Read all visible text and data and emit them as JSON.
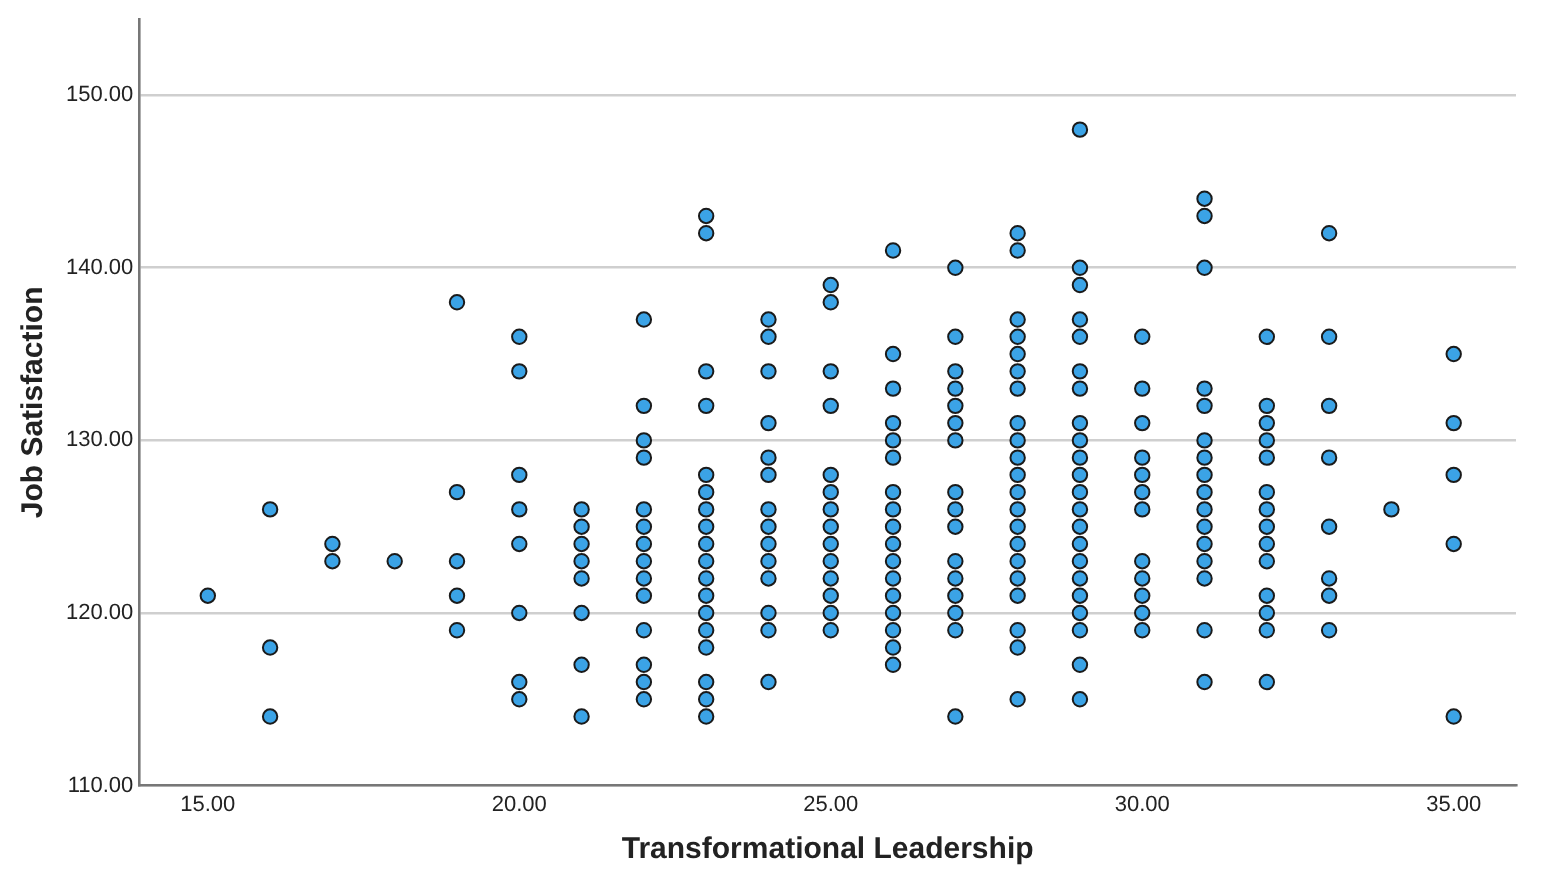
{
  "chart_data": {
    "type": "scatter",
    "xlabel": "Transformational Leadership",
    "ylabel": "Job Satisfaction",
    "x": [
      15,
      16,
      16,
      16,
      17,
      17,
      18,
      19,
      19,
      19,
      19,
      19,
      20,
      20,
      20,
      20,
      20,
      20,
      20,
      20,
      21,
      21,
      21,
      21,
      21,
      21,
      21,
      21,
      22,
      22,
      22,
      22,
      22,
      22,
      22,
      22,
      22,
      22,
      22,
      22,
      22,
      22,
      23,
      23,
      23,
      23,
      23,
      23,
      23,
      23,
      23,
      23,
      23,
      23,
      23,
      23,
      23,
      23,
      23,
      23,
      24,
      24,
      24,
      24,
      24,
      24,
      24,
      24,
      24,
      24,
      24,
      24,
      24,
      24,
      25,
      25,
      25,
      25,
      25,
      25,
      25,
      25,
      25,
      25,
      25,
      25,
      25,
      25,
      26,
      26,
      26,
      26,
      26,
      26,
      26,
      26,
      26,
      26,
      26,
      26,
      26,
      26,
      26,
      26,
      26,
      27,
      27,
      27,
      27,
      27,
      27,
      27,
      27,
      27,
      27,
      27,
      27,
      27,
      27,
      27,
      27,
      28,
      28,
      28,
      28,
      28,
      28,
      28,
      28,
      28,
      28,
      28,
      28,
      28,
      28,
      28,
      28,
      28,
      28,
      28,
      28,
      28,
      29,
      29,
      29,
      29,
      29,
      29,
      29,
      29,
      29,
      29,
      29,
      29,
      29,
      29,
      29,
      29,
      29,
      29,
      29,
      29,
      29,
      29,
      30,
      30,
      30,
      30,
      30,
      30,
      30,
      30,
      30,
      30,
      30,
      30,
      31,
      31,
      31,
      31,
      31,
      31,
      31,
      31,
      31,
      31,
      31,
      31,
      31,
      31,
      31,
      31,
      32,
      32,
      32,
      32,
      32,
      32,
      32,
      32,
      32,
      32,
      32,
      32,
      32,
      32,
      33,
      33,
      33,
      33,
      33,
      33,
      33,
      33,
      34,
      35,
      35,
      35,
      35,
      35
    ],
    "values": [
      121,
      126,
      118,
      114,
      124,
      123,
      123,
      138,
      127,
      123,
      121,
      119,
      136,
      134,
      128,
      126,
      124,
      120,
      116,
      115,
      126,
      125,
      124,
      123,
      122,
      120,
      117,
      114,
      137,
      132,
      130,
      129,
      126,
      125,
      124,
      123,
      122,
      121,
      119,
      117,
      116,
      115,
      143,
      142,
      134,
      132,
      128,
      127,
      126,
      125,
      124,
      123,
      122,
      121,
      120,
      119,
      118,
      116,
      115,
      114,
      137,
      136,
      134,
      131,
      129,
      128,
      126,
      125,
      124,
      123,
      122,
      120,
      119,
      116,
      139,
      138,
      134,
      132,
      128,
      127,
      126,
      125,
      124,
      123,
      122,
      121,
      120,
      119,
      141,
      135,
      133,
      131,
      130,
      129,
      127,
      126,
      125,
      124,
      123,
      122,
      121,
      120,
      119,
      118,
      117,
      140,
      136,
      134,
      133,
      132,
      131,
      130,
      127,
      126,
      125,
      123,
      122,
      121,
      120,
      119,
      114,
      142,
      141,
      137,
      136,
      135,
      134,
      133,
      131,
      130,
      129,
      128,
      127,
      126,
      125,
      124,
      123,
      122,
      121,
      119,
      118,
      115,
      148,
      140,
      139,
      137,
      136,
      134,
      133,
      131,
      130,
      129,
      128,
      127,
      126,
      125,
      124,
      123,
      122,
      121,
      120,
      119,
      117,
      115,
      136,
      133,
      131,
      129,
      128,
      127,
      126,
      123,
      122,
      121,
      120,
      119,
      144,
      143,
      140,
      133,
      132,
      130,
      129,
      128,
      127,
      126,
      125,
      124,
      123,
      122,
      119,
      116,
      136,
      132,
      131,
      130,
      129,
      127,
      126,
      125,
      124,
      123,
      121,
      120,
      119,
      116,
      142,
      136,
      132,
      129,
      125,
      122,
      121,
      119,
      126,
      135,
      131,
      128,
      124,
      114
    ],
    "color": "#3ba3e6",
    "marker": "circle",
    "grid": "y",
    "legend": false,
    "xlim": [
      13.9,
      36
    ],
    "xticks": [
      {
        "value": 15,
        "label": "15.00"
      },
      {
        "value": 20,
        "label": "20.00"
      },
      {
        "value": 25,
        "label": "25.00"
      },
      {
        "value": 30,
        "label": "30.00"
      },
      {
        "value": 35,
        "label": "35.00"
      }
    ],
    "ylim": [
      110,
      154.4
    ],
    "yticks": [
      {
        "value": 110,
        "label": "110.00"
      },
      {
        "value": 120,
        "label": "120.00"
      },
      {
        "value": 130,
        "label": "130.00"
      },
      {
        "value": 140,
        "label": "140.00"
      },
      {
        "value": 150,
        "label": "150.00"
      }
    ]
  }
}
